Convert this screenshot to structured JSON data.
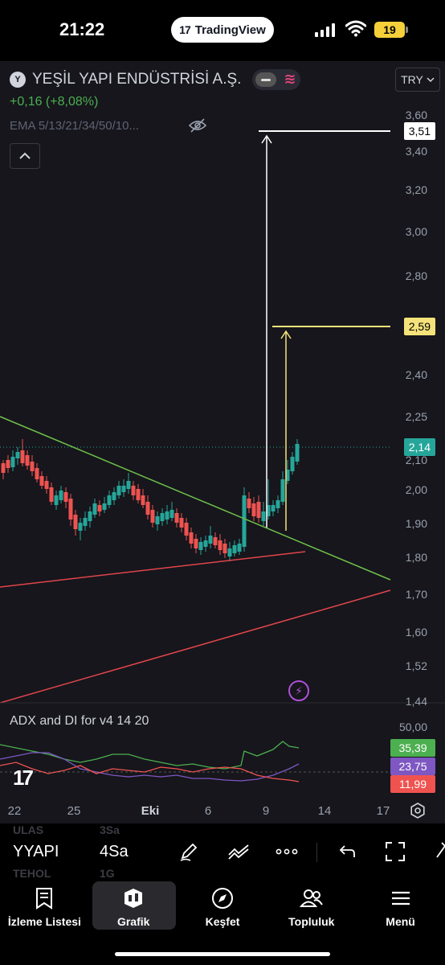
{
  "status_bar": {
    "time": "21:22",
    "app_pill": "TradingView",
    "battery": "19"
  },
  "chart_header": {
    "symbol_name": "YEŞİL YAPI ENDÜSTRİSİ A.Ş.",
    "change": "+0,16 (+8,08%)",
    "indicator": "EMA 5/13/21/34/50/10...",
    "currency": "TRY"
  },
  "colors": {
    "up": "#26a69a",
    "down": "#ef5350",
    "background": "#16161c",
    "trend_green": "#6fbf4a",
    "trend_red": "#e0454a",
    "target_white": "#ffffff",
    "target_yellow": "#f5e27a"
  },
  "price_axis": [
    "3,60",
    "3,40",
    "3,20",
    "3,00",
    "2,80",
    "2,40",
    "2,25",
    "2,10",
    "2,00",
    "1,90",
    "1,80",
    "1,70",
    "1,60",
    "1,52",
    "1,44"
  ],
  "price_tags": {
    "target_high": "3,51",
    "target_mid": "2,59",
    "last_price": "2,14"
  },
  "adx": {
    "label": "ADX and DI for v4 14 20",
    "axis": "50,00",
    "values": [
      {
        "value": "35,39",
        "color": "#4caf50"
      },
      {
        "value": "23,75",
        "color": "#7e57c2"
      },
      {
        "value": "11,99",
        "color": "#ef5350"
      }
    ]
  },
  "time_axis": [
    "22",
    "25",
    "Eki",
    "6",
    "9",
    "14",
    "17"
  ],
  "toolbar": {
    "symbol": "YYAPI",
    "interval": "4Sa",
    "ghost_left_top": "ULAS",
    "ghost_left_bottom": "TEHOL",
    "ghost_right_top": "3Sa",
    "ghost_right_bottom": "1G"
  },
  "nav": [
    {
      "label": "İzleme Listesi",
      "icon": "watchlist-icon"
    },
    {
      "label": "Grafik",
      "icon": "chart-icon"
    },
    {
      "label": "Keşfet",
      "icon": "compass-icon"
    },
    {
      "label": "Topluluk",
      "icon": "community-icon"
    },
    {
      "label": "Menü",
      "icon": "menu-icon"
    }
  ]
}
